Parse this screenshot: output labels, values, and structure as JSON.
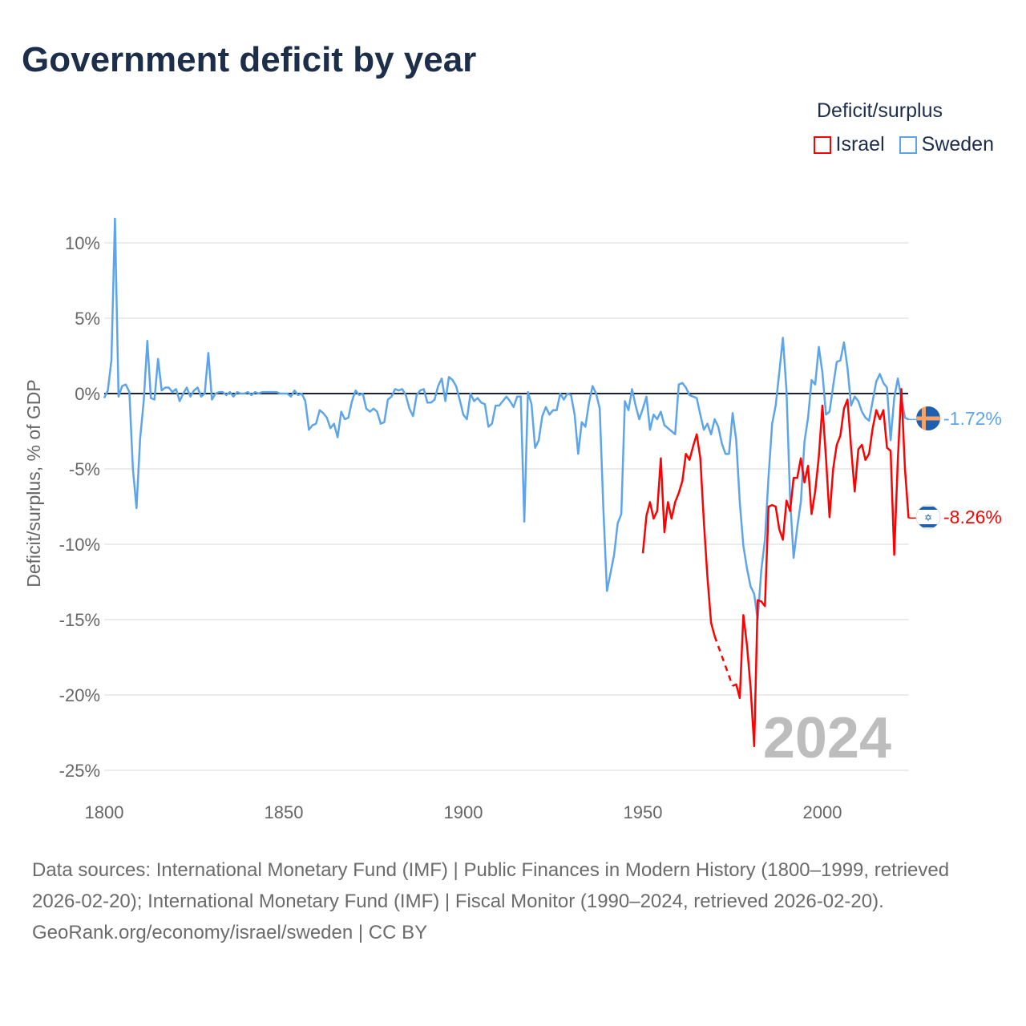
{
  "title": "Government deficit by year",
  "legend": {
    "title": "Deficit/surplus",
    "items": [
      {
        "label": "Israel",
        "color": "#ff0000"
      },
      {
        "label": "Sweden",
        "color": "#5da5ea"
      }
    ]
  },
  "year_overlay": "2024",
  "end_labels": {
    "sweden": "-1.72%",
    "israel": "-8.26%"
  },
  "footer": {
    "sources": "Data sources: International Monetary Fund (IMF) | Public Finances in Modern History (1800–1999, retrieved 2026-02-20); International Monetary Fund (IMF) | Fiscal Monitor (1990–2024, retrieved 2026-02-20).",
    "credit": "GeoRank.org/economy/israel/sweden | CC BY"
  },
  "chart_data": {
    "type": "line",
    "title": "Government deficit by year",
    "xlabel": "",
    "ylabel": "Deficit/surplus, % of GDP",
    "xlim": [
      1800,
      2024
    ],
    "ylim": [
      -25,
      12
    ],
    "x_ticks": [
      {
        "v": 1800,
        "label": "1800"
      },
      {
        "v": 1850,
        "label": "1850"
      },
      {
        "v": 1900,
        "label": "1900"
      },
      {
        "v": 1950,
        "label": "1950"
      },
      {
        "v": 2000,
        "label": "2000"
      }
    ],
    "y_ticks": [
      {
        "v": 10,
        "label": "10%"
      },
      {
        "v": 5,
        "label": "5%"
      },
      {
        "v": 0,
        "label": "0%"
      },
      {
        "v": -5,
        "label": "-5%"
      },
      {
        "v": -10,
        "label": "-10%"
      },
      {
        "v": -15,
        "label": "-15%"
      },
      {
        "v": -20,
        "label": "-20%"
      },
      {
        "v": -25,
        "label": "-25%"
      }
    ],
    "grid": true,
    "legend_position": "top-right",
    "series": [
      {
        "name": "Sweden",
        "color": "#5da5ea",
        "points": [
          [
            1800,
            -0.3
          ],
          [
            1801,
            0.2
          ],
          [
            1802,
            2.2
          ],
          [
            1803,
            11.6
          ],
          [
            1804,
            -0.2
          ],
          [
            1805,
            0.5
          ],
          [
            1806,
            0.6
          ],
          [
            1807,
            0.1
          ],
          [
            1808,
            -5
          ],
          [
            1809,
            -7.6
          ],
          [
            1810,
            -3
          ],
          [
            1811,
            -0.5
          ],
          [
            1812,
            3.5
          ],
          [
            1813,
            -0.3
          ],
          [
            1814,
            -0.4
          ],
          [
            1815,
            2.3
          ],
          [
            1816,
            0.2
          ],
          [
            1817,
            0.4
          ],
          [
            1818,
            0.4
          ],
          [
            1819,
            0.1
          ],
          [
            1820,
            0.3
          ],
          [
            1821,
            -0.5
          ],
          [
            1822,
            0
          ],
          [
            1823,
            0.4
          ],
          [
            1824,
            -0.2
          ],
          [
            1825,
            0.2
          ],
          [
            1826,
            0.4
          ],
          [
            1827,
            -0.2
          ],
          [
            1828,
            0
          ],
          [
            1829,
            2.7
          ],
          [
            1830,
            -0.4
          ],
          [
            1831,
            0
          ],
          [
            1832,
            0.1
          ],
          [
            1833,
            0.1
          ],
          [
            1834,
            -0.1
          ],
          [
            1835,
            0.1
          ],
          [
            1836,
            -0.2
          ],
          [
            1837,
            0.1
          ],
          [
            1838,
            0
          ],
          [
            1839,
            0
          ],
          [
            1840,
            0.1
          ],
          [
            1841,
            -0.1
          ],
          [
            1842,
            0.1
          ],
          [
            1843,
            0
          ],
          [
            1844,
            0.1
          ],
          [
            1845,
            0.1
          ],
          [
            1846,
            0.1
          ],
          [
            1847,
            0.1
          ],
          [
            1848,
            0.1
          ],
          [
            1849,
            0
          ],
          [
            1850,
            0
          ],
          [
            1851,
            0
          ],
          [
            1852,
            -0.2
          ],
          [
            1853,
            0.2
          ],
          [
            1854,
            -0.1
          ],
          [
            1855,
            0
          ],
          [
            1856,
            -0.5
          ],
          [
            1857,
            -2.4
          ],
          [
            1858,
            -2.1
          ],
          [
            1859,
            -2
          ],
          [
            1860,
            -1.1
          ],
          [
            1861,
            -1.3
          ],
          [
            1862,
            -1.6
          ],
          [
            1863,
            -2.3
          ],
          [
            1864,
            -2
          ],
          [
            1865,
            -2.9
          ],
          [
            1866,
            -1.2
          ],
          [
            1867,
            -1.7
          ],
          [
            1868,
            -1.6
          ],
          [
            1869,
            -0.5
          ],
          [
            1870,
            0.2
          ],
          [
            1871,
            -0.1
          ],
          [
            1872,
            0
          ],
          [
            1873,
            -1
          ],
          [
            1874,
            -1.2
          ],
          [
            1875,
            -1
          ],
          [
            1876,
            -1.2
          ],
          [
            1877,
            -2
          ],
          [
            1878,
            -1.9
          ],
          [
            1879,
            -0.4
          ],
          [
            1880,
            -0.2
          ],
          [
            1881,
            0.3
          ],
          [
            1882,
            0.2
          ],
          [
            1883,
            0.3
          ],
          [
            1884,
            -0.1
          ],
          [
            1885,
            -1
          ],
          [
            1886,
            -1.5
          ],
          [
            1887,
            -0.1
          ],
          [
            1888,
            0.2
          ],
          [
            1889,
            0.3
          ],
          [
            1890,
            -0.6
          ],
          [
            1891,
            -0.6
          ],
          [
            1892,
            -0.4
          ],
          [
            1893,
            0.5
          ],
          [
            1894,
            1
          ],
          [
            1895,
            -0.5
          ],
          [
            1896,
            1.1
          ],
          [
            1897,
            0.9
          ],
          [
            1898,
            0.5
          ],
          [
            1899,
            -0.4
          ],
          [
            1900,
            -1.4
          ],
          [
            1901,
            -1.7
          ],
          [
            1902,
            0
          ],
          [
            1903,
            -0.5
          ],
          [
            1904,
            -0.3
          ],
          [
            1905,
            -0.6
          ],
          [
            1906,
            -0.7
          ],
          [
            1907,
            -2.2
          ],
          [
            1908,
            -2
          ],
          [
            1909,
            -0.8
          ],
          [
            1910,
            -0.8
          ],
          [
            1911,
            -0.5
          ],
          [
            1912,
            -0.2
          ],
          [
            1913,
            -0.5
          ],
          [
            1914,
            -0.9
          ],
          [
            1915,
            -0.2
          ],
          [
            1916,
            -0.2
          ],
          [
            1917,
            -8.5
          ],
          [
            1918,
            0.1
          ],
          [
            1919,
            -0.7
          ],
          [
            1920,
            -3.6
          ],
          [
            1921,
            -3.1
          ],
          [
            1922,
            -1.5
          ],
          [
            1923,
            -0.9
          ],
          [
            1924,
            -1.4
          ],
          [
            1925,
            -1.1
          ],
          [
            1926,
            -1.1
          ],
          [
            1927,
            0
          ],
          [
            1928,
            -0.4
          ],
          [
            1929,
            0
          ],
          [
            1930,
            -0.1
          ],
          [
            1931,
            -1.4
          ],
          [
            1932,
            -4
          ],
          [
            1933,
            -1.9
          ],
          [
            1934,
            -2.2
          ],
          [
            1935,
            -0.6
          ],
          [
            1936,
            0.5
          ],
          [
            1937,
            0
          ],
          [
            1938,
            -1
          ],
          [
            1939,
            -7.6
          ],
          [
            1940,
            -13.1
          ],
          [
            1941,
            -11.9
          ],
          [
            1942,
            -10.7
          ],
          [
            1943,
            -8.6
          ],
          [
            1944,
            -8
          ],
          [
            1945,
            -0.5
          ],
          [
            1946,
            -1.1
          ],
          [
            1947,
            0.3
          ],
          [
            1948,
            -0.8
          ],
          [
            1949,
            -1.7
          ],
          [
            1950,
            -1
          ],
          [
            1951,
            -0.2
          ],
          [
            1952,
            -2.4
          ],
          [
            1953,
            -1.4
          ],
          [
            1954,
            -1.7
          ],
          [
            1955,
            -1.2
          ],
          [
            1956,
            -2.1
          ],
          [
            1957,
            -2.3
          ],
          [
            1958,
            -2.5
          ],
          [
            1959,
            -2.7
          ],
          [
            1960,
            0.6
          ],
          [
            1961,
            0.7
          ],
          [
            1962,
            0.4
          ],
          [
            1963,
            -0.1
          ],
          [
            1964,
            -0.2
          ],
          [
            1965,
            -0.3
          ],
          [
            1966,
            -1.4
          ],
          [
            1967,
            -2.4
          ],
          [
            1968,
            -2
          ],
          [
            1969,
            -2.7
          ],
          [
            1970,
            -1.7
          ],
          [
            1971,
            -2.2
          ],
          [
            1972,
            -3.3
          ],
          [
            1973,
            -4
          ],
          [
            1974,
            -4
          ],
          [
            1975,
            -1.3
          ],
          [
            1976,
            -3.1
          ],
          [
            1977,
            -7.2
          ],
          [
            1978,
            -10.1
          ],
          [
            1979,
            -11.6
          ],
          [
            1980,
            -12.8
          ],
          [
            1981,
            -13.3
          ],
          [
            1982,
            -15
          ],
          [
            1983,
            -11.7
          ],
          [
            1984,
            -9.7
          ],
          [
            1985,
            -5.5
          ],
          [
            1986,
            -2
          ],
          [
            1987,
            -0.8
          ],
          [
            1988,
            1.4
          ],
          [
            1989,
            3.7
          ],
          [
            1990,
            0.2
          ],
          [
            1991,
            -7
          ],
          [
            1992,
            -10.9
          ],
          [
            1993,
            -8.9
          ],
          [
            1994,
            -7.2
          ],
          [
            1995,
            -3.2
          ],
          [
            1996,
            -1.6
          ],
          [
            1997,
            0.9
          ],
          [
            1998,
            0.6
          ],
          [
            1999,
            3.1
          ],
          [
            2000,
            1.4
          ],
          [
            2001,
            -1.4
          ],
          [
            2002,
            -1.2
          ],
          [
            2003,
            0.5
          ],
          [
            2004,
            2.1
          ],
          [
            2005,
            2.2
          ],
          [
            2006,
            3.4
          ],
          [
            2007,
            1.7
          ],
          [
            2008,
            -0.8
          ],
          [
            2009,
            -0.2
          ],
          [
            2010,
            -0.5
          ],
          [
            2011,
            -1.2
          ],
          [
            2012,
            -1.6
          ],
          [
            2013,
            -1.8
          ],
          [
            2014,
            -0.5
          ],
          [
            2015,
            0.8
          ],
          [
            2016,
            1.3
          ],
          [
            2017,
            0.7
          ],
          [
            2018,
            0.4
          ],
          [
            2019,
            -3.1
          ],
          [
            2020,
            -0.3
          ],
          [
            2021,
            1
          ],
          [
            2022,
            -0.3
          ],
          [
            2023,
            -1.6
          ],
          [
            2024,
            -1.72
          ]
        ]
      },
      {
        "name": "Israel",
        "color": "#ff0000",
        "points": [
          [
            1950,
            -10.6
          ],
          [
            1951,
            -8.1
          ],
          [
            1952,
            -7.2
          ],
          [
            1953,
            -8.3
          ],
          [
            1954,
            -7.8
          ],
          [
            1955,
            -4.3
          ],
          [
            1956,
            -9.2
          ],
          [
            1957,
            -7.2
          ],
          [
            1958,
            -8.3
          ],
          [
            1959,
            -7.2
          ],
          [
            1960,
            -6.6
          ],
          [
            1961,
            -5.8
          ],
          [
            1962,
            -4
          ],
          [
            1963,
            -4.4
          ],
          [
            1964,
            -3.5
          ],
          [
            1965,
            -2.7
          ],
          [
            1966,
            -4.3
          ],
          [
            1967,
            -8.5
          ],
          [
            1968,
            -12.2
          ],
          [
            1969,
            -15.2
          ],
          [
            1970,
            -16.1
          ],
          [
            1975,
            -19.4
          ],
          [
            1976,
            -19.3
          ],
          [
            1977,
            -20.2
          ],
          [
            1978,
            -14.7
          ],
          [
            1979,
            -16.7
          ],
          [
            1980,
            -19.5
          ],
          [
            1981,
            -23.4
          ],
          [
            1982,
            -13.7
          ],
          [
            1983,
            -13.8
          ],
          [
            1984,
            -14.1
          ],
          [
            1985,
            -7.5
          ],
          [
            1986,
            -7.4
          ],
          [
            1987,
            -7.5
          ],
          [
            1988,
            -9
          ],
          [
            1989,
            -9.7
          ],
          [
            1990,
            -7.1
          ],
          [
            1991,
            -7.8
          ],
          [
            1992,
            -5.6
          ],
          [
            1993,
            -5.6
          ],
          [
            1994,
            -4.3
          ],
          [
            1995,
            -5.9
          ],
          [
            1996,
            -4.8
          ],
          [
            1997,
            -8
          ],
          [
            1998,
            -6.5
          ],
          [
            1999,
            -4.2
          ],
          [
            2000,
            -0.8
          ],
          [
            2001,
            -4.3
          ],
          [
            2002,
            -8.2
          ],
          [
            2003,
            -5
          ],
          [
            2004,
            -3.4
          ],
          [
            2005,
            -2.8
          ],
          [
            2006,
            -1
          ],
          [
            2007,
            -0.4
          ],
          [
            2008,
            -3.6
          ],
          [
            2009,
            -6.5
          ],
          [
            2010,
            -3.7
          ],
          [
            2011,
            -3.4
          ],
          [
            2012,
            -4.4
          ],
          [
            2013,
            -4
          ],
          [
            2014,
            -2.3
          ],
          [
            2015,
            -1.1
          ],
          [
            2016,
            -1.7
          ],
          [
            2017,
            -1.1
          ],
          [
            2018,
            -3.6
          ],
          [
            2019,
            -3.8
          ],
          [
            2020,
            -10.7
          ],
          [
            2021,
            -4.4
          ],
          [
            2022,
            0.3
          ],
          [
            2023,
            -5
          ],
          [
            2024,
            -8.26
          ]
        ]
      }
    ]
  }
}
